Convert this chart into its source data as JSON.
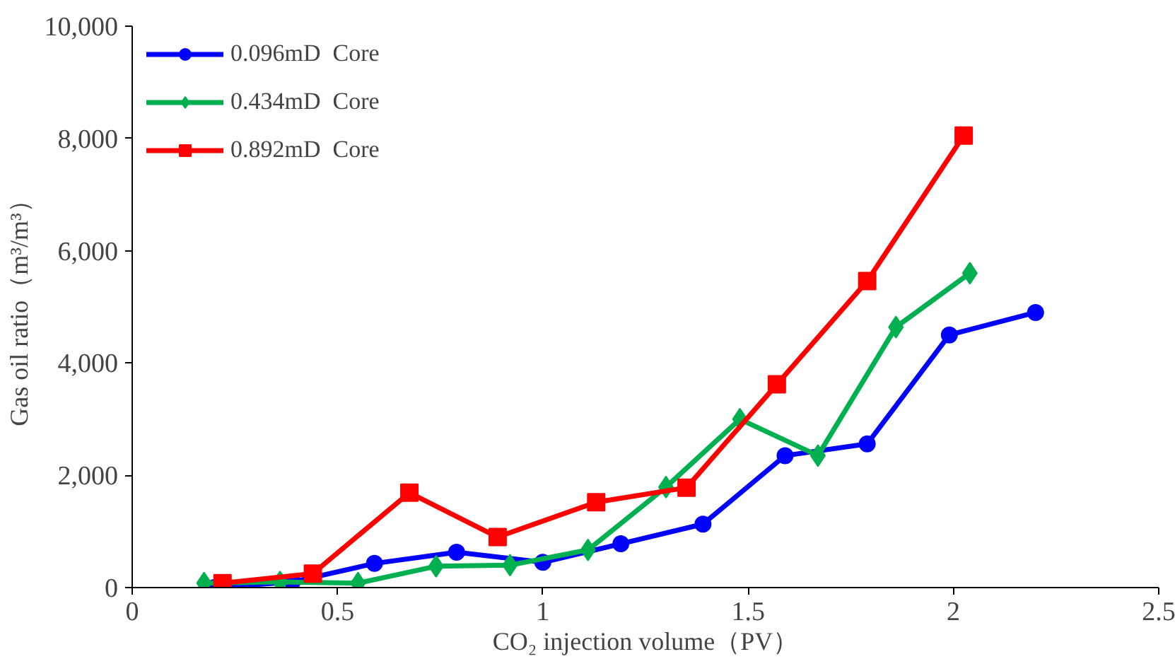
{
  "chart_data": {
    "type": "line",
    "xlabel": "CO₂ injection volume（PV）",
    "ylabel": "Gas oil ratio（m³/m³）",
    "xlim": [
      0,
      2.5
    ],
    "xticks": [
      0,
      0.5,
      1,
      1.5,
      2,
      2.5
    ],
    "ylim": [
      0,
      10000
    ],
    "yticks": [
      {
        "value": 0,
        "label": "0"
      },
      {
        "value": 2000,
        "label": "2,000"
      },
      {
        "value": 4000,
        "label": "4,000"
      },
      {
        "value": 6000,
        "label": "6,000"
      },
      {
        "value": 8000,
        "label": "8,000"
      },
      {
        "value": 10000,
        "label": "10,000"
      }
    ],
    "grid": false,
    "legend": "top left",
    "line_style": "solid",
    "series": [
      {
        "name": "0.096mD  Core",
        "color": "#0000ff",
        "marker": "circle",
        "x": [
          0.2,
          0.39,
          0.59,
          0.79,
          1.0,
          1.19,
          1.39,
          1.59,
          1.79,
          1.99,
          2.2
        ],
        "values": [
          0,
          100,
          430,
          630,
          450,
          780,
          1130,
          2350,
          2560,
          4500,
          4900
        ]
      },
      {
        "name": "0.434mD  Core",
        "color": "#00b050",
        "marker": "diamond",
        "x": [
          0.175,
          0.36,
          0.55,
          0.74,
          0.92,
          1.11,
          1.3,
          1.48,
          1.67,
          1.86,
          2.04
        ],
        "values": [
          80,
          100,
          80,
          380,
          400,
          670,
          1790,
          3000,
          2350,
          4640,
          5600
        ]
      },
      {
        "name": "0.892mD  Core",
        "color": "#ff0000",
        "marker": "square",
        "x": [
          0.22,
          0.44,
          0.675,
          0.89,
          1.13,
          1.35,
          1.57,
          1.79,
          2.025
        ],
        "values": [
          80,
          250,
          1690,
          900,
          1520,
          1780,
          3620,
          5460,
          8050
        ]
      }
    ]
  }
}
